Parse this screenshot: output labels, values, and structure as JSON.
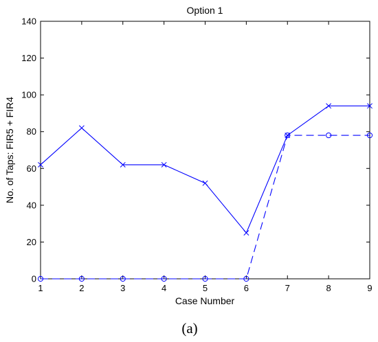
{
  "chart_data": {
    "type": "line",
    "title": "Option 1",
    "xlabel": "Case Number",
    "ylabel": "No. of Taps: FIR5 + FIR4",
    "caption": "(a)",
    "xlim": [
      1,
      9
    ],
    "ylim": [
      0,
      140
    ],
    "x_ticks": [
      1,
      2,
      3,
      4,
      5,
      6,
      7,
      8,
      9
    ],
    "y_ticks": [
      0,
      20,
      40,
      60,
      80,
      100,
      120,
      140
    ],
    "grid": false,
    "line_color": "#0000ff",
    "series": [
      {
        "style": "solid",
        "marker": "x",
        "x": [
          1,
          2,
          3,
          4,
          5,
          6,
          7,
          8,
          9
        ],
        "values": [
          62,
          82,
          62,
          62,
          52,
          25,
          78,
          94,
          94
        ]
      },
      {
        "style": "dashed",
        "marker": "o",
        "x": [
          1,
          2,
          3,
          4,
          5,
          6,
          7,
          8,
          9
        ],
        "values": [
          0,
          0,
          0,
          0,
          0,
          0,
          78,
          78,
          78
        ]
      }
    ]
  }
}
